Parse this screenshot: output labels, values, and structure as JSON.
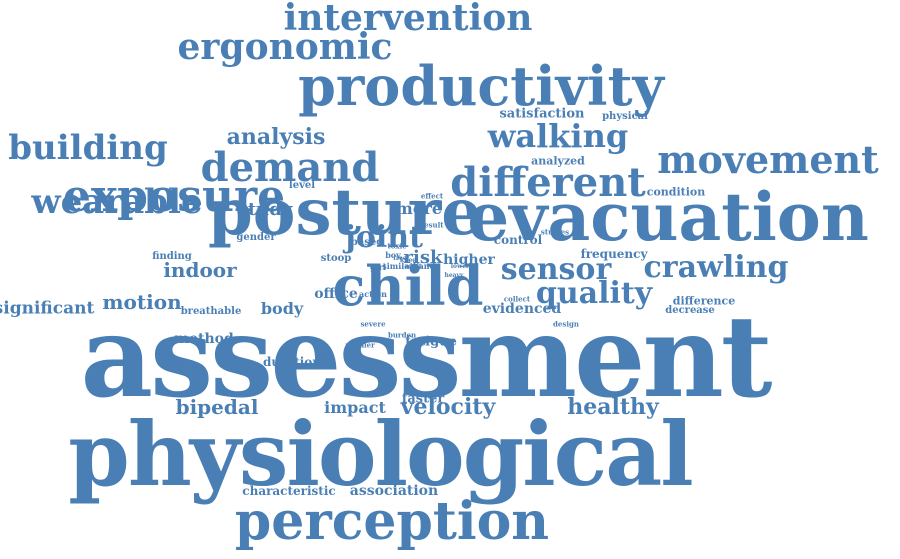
{
  "colors": {
    "word": "#4a7fb5",
    "background": "#ffffff"
  },
  "words": [
    "assessment",
    "physiological",
    "evacuation",
    "posture",
    "perception",
    "productivity",
    "child",
    "exposure",
    "demand",
    "different",
    "movement",
    "intervention",
    "ergonomic",
    "wearable",
    "building",
    "walking",
    "crawling",
    "quality",
    "sensor",
    "joint",
    "analysis",
    "velocity",
    "healthy",
    "bipedal",
    "motion",
    "indoor",
    "study",
    "risk",
    "more",
    "impact",
    "body",
    "significant",
    "association",
    "characteristic",
    "office",
    "control",
    "higher",
    "evidenced",
    "faster",
    "fatigue",
    "method",
    "duration",
    "frequency",
    "satisfaction",
    "physical",
    "analyzed",
    "condition",
    "difference",
    "decrease",
    "breathable",
    "finding",
    "gender",
    "level",
    "based",
    "stoop",
    "boy",
    "girl",
    "similar",
    "hand",
    "action",
    "severe",
    "burden",
    "purifier",
    "studies",
    "design",
    "collect",
    "effect",
    "result",
    "toxic",
    "heavy",
    "free",
    "knee",
    "adult",
    "lower"
  ]
}
